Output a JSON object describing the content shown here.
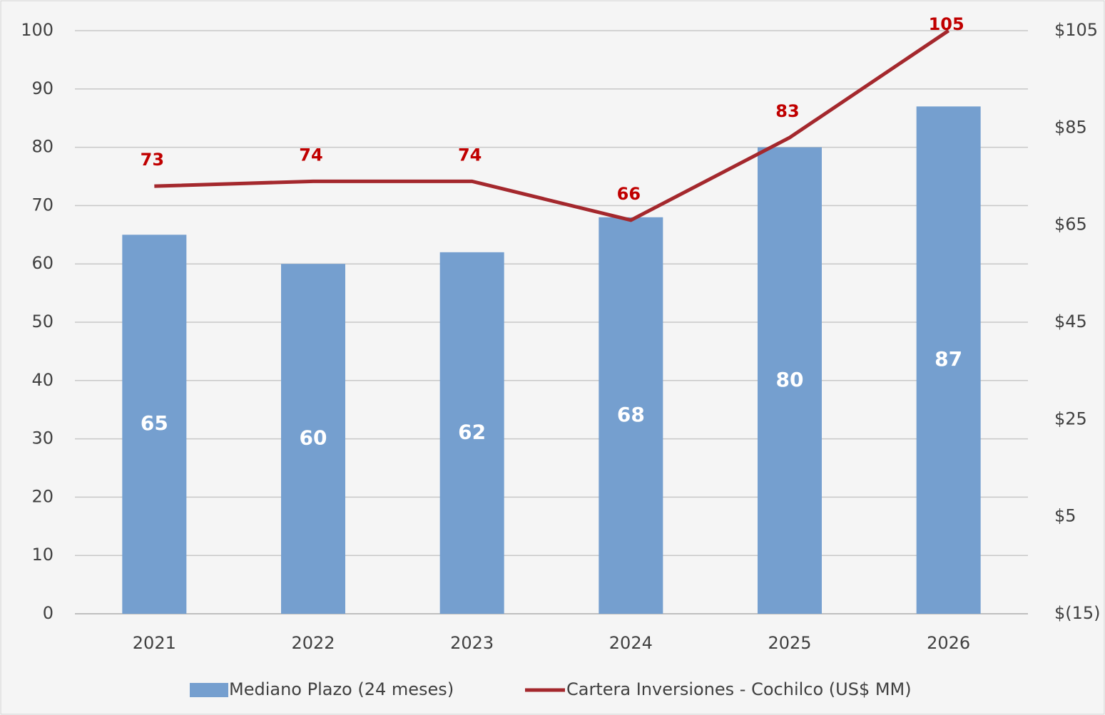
{
  "chart_data": {
    "type": "bar-line",
    "categories": [
      "2021",
      "2022",
      "2023",
      "2024",
      "2025",
      "2026"
    ],
    "series": [
      {
        "name": "Mediano Plazo (24 meses)",
        "type": "bar",
        "color": "#759fcf",
        "label_color": "#ffffff",
        "values": [
          65,
          60,
          62,
          68,
          80,
          87
        ]
      },
      {
        "name": "Cartera Inversiones - Cochilco (US$ MM)",
        "type": "line",
        "axis": "y2",
        "color": "#a4282d",
        "label_color": "#c00000",
        "values": [
          73,
          74,
          74,
          66,
          83,
          105
        ]
      }
    ],
    "ylim": [
      0,
      100
    ],
    "yticks": [
      0,
      10,
      20,
      30,
      40,
      50,
      60,
      70,
      80,
      90,
      100
    ],
    "y2lim": [
      -15,
      105
    ],
    "y2ticks": [
      {
        "value": -15,
        "label": "$(15)"
      },
      {
        "value": 5,
        "label": "$5"
      },
      {
        "value": 25,
        "label": "$25"
      },
      {
        "value": 45,
        "label": "$45"
      },
      {
        "value": 65,
        "label": "$65"
      },
      {
        "value": 85,
        "label": "$85"
      },
      {
        "value": 105,
        "label": "$105"
      }
    ],
    "grid": true,
    "legend": "bottom"
  }
}
